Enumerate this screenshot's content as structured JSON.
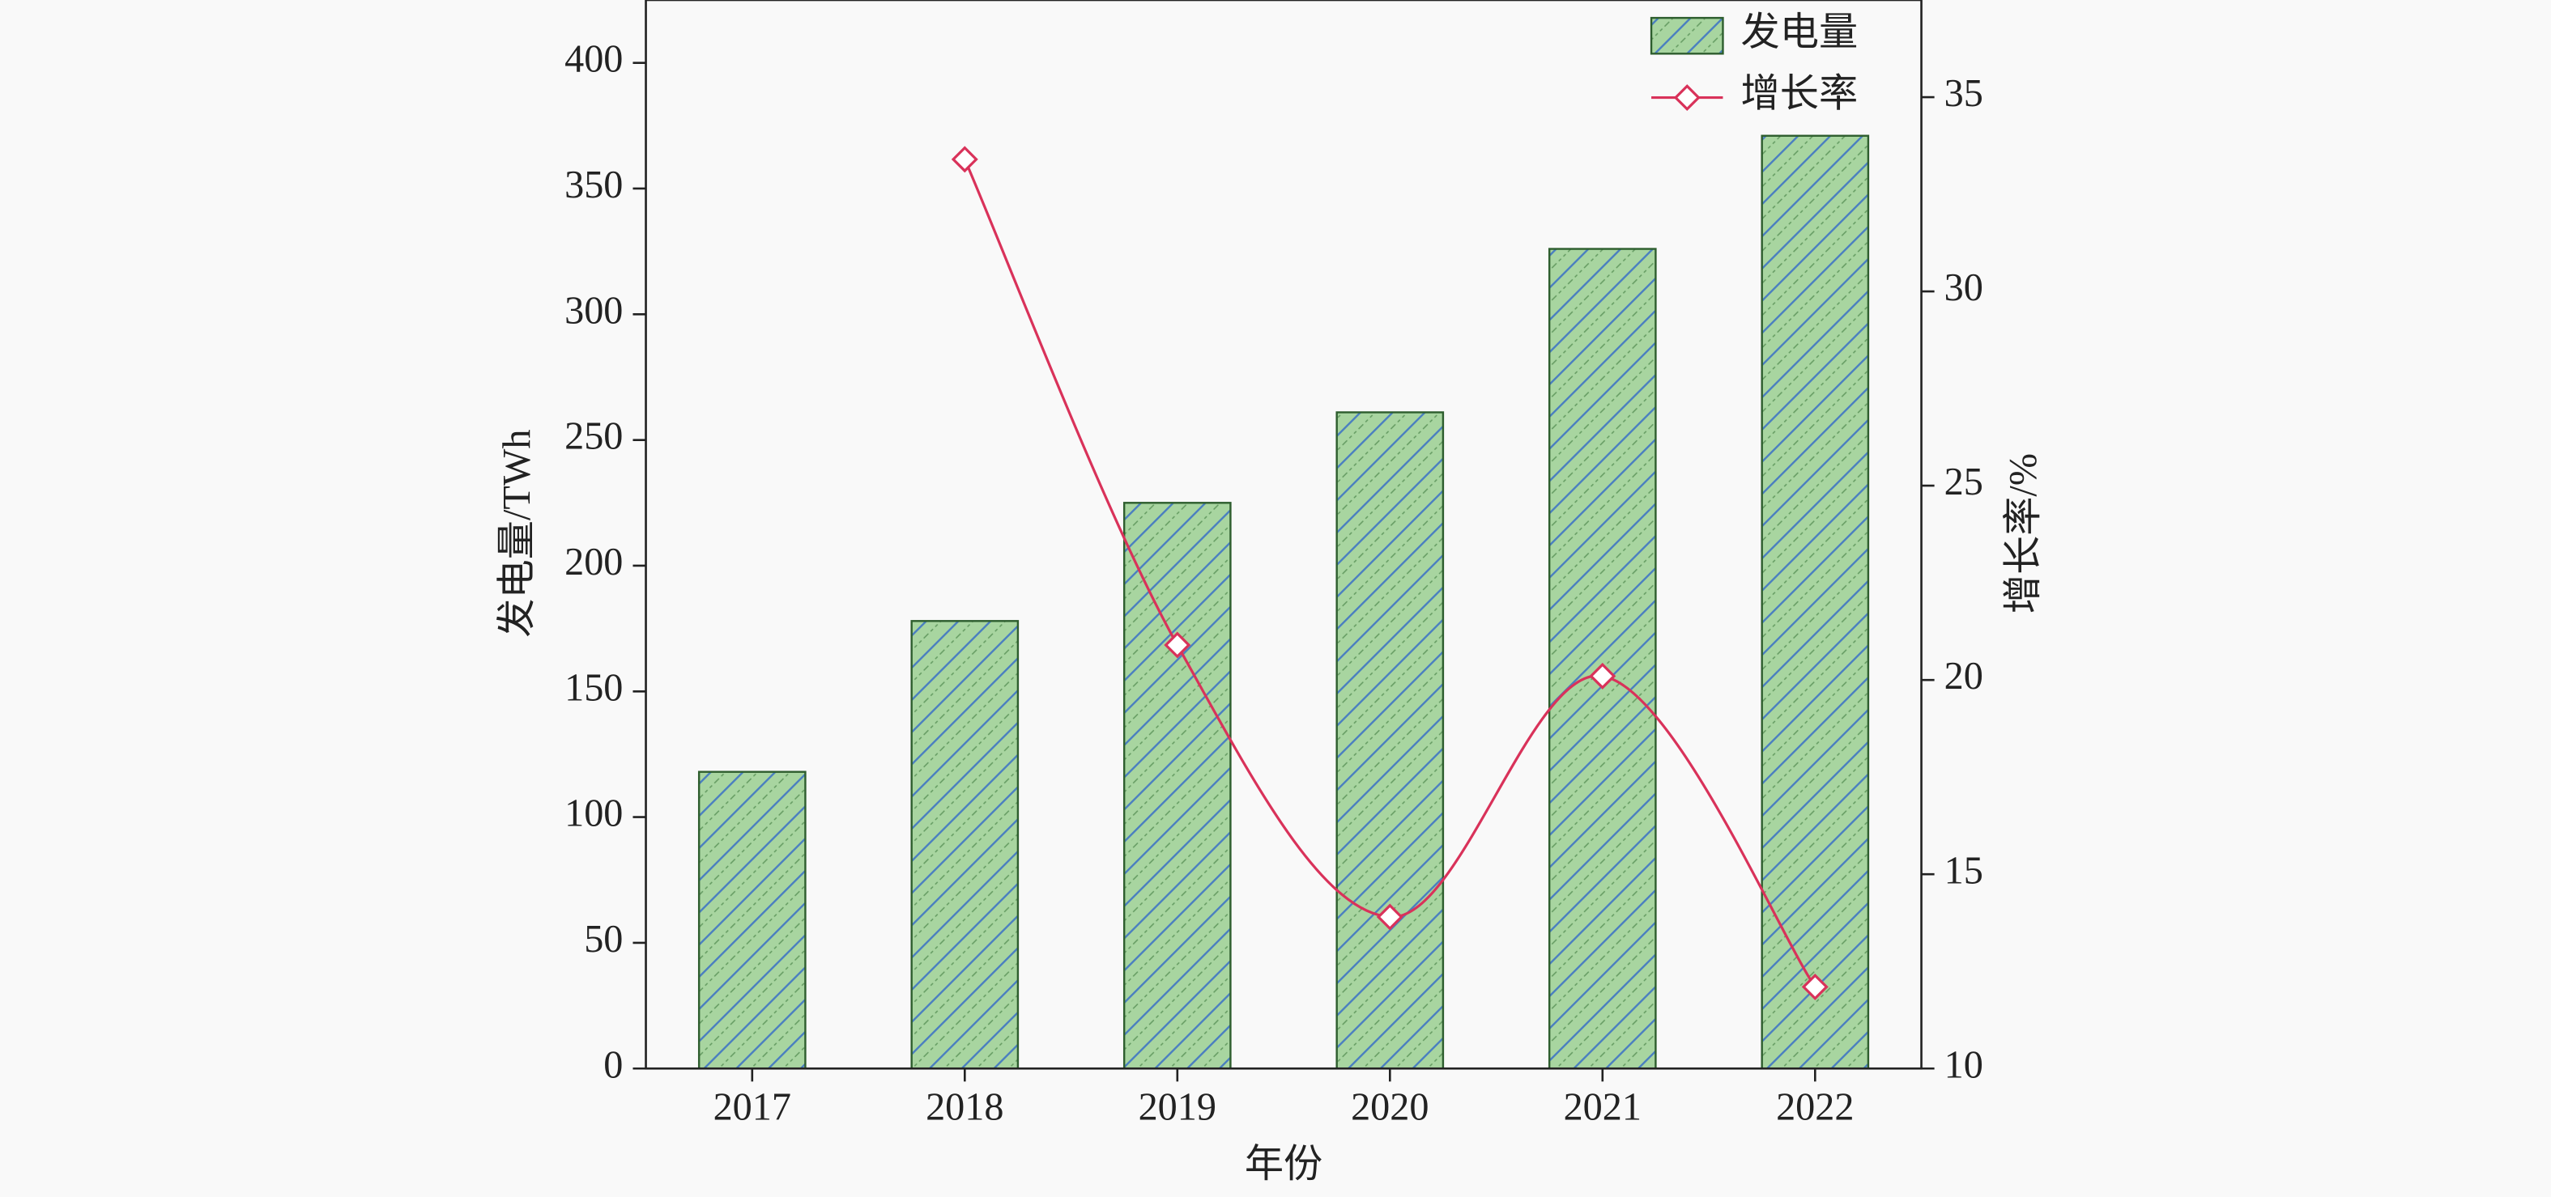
{
  "chart_data": {
    "type": "bar",
    "x_label": "年份",
    "y_label": "发电量/TWh",
    "y2_label": "增长率/%",
    "categories": [
      "2017",
      "2018",
      "2019",
      "2020",
      "2021",
      "2022"
    ],
    "series": [
      {
        "name": "发电量",
        "type": "bar",
        "color": "#a8d5a0",
        "hatch_color": "#4a7fc0",
        "values": [
          118,
          178,
          225,
          261,
          326,
          371
        ]
      },
      {
        "name": "增长率",
        "type": "line",
        "axis": "y2",
        "color": "#d9325a",
        "values": [
          null,
          33.4,
          20.9,
          13.9,
          20.1,
          12.1
        ]
      }
    ],
    "ylim": [
      0,
      425
    ],
    "yticks": [
      0,
      50,
      100,
      150,
      200,
      250,
      300,
      350,
      400
    ],
    "y2lim": [
      10,
      37.5
    ],
    "y2ticks": [
      10,
      15,
      20,
      25,
      30,
      35
    ],
    "grid": false,
    "legend": "upper right"
  }
}
